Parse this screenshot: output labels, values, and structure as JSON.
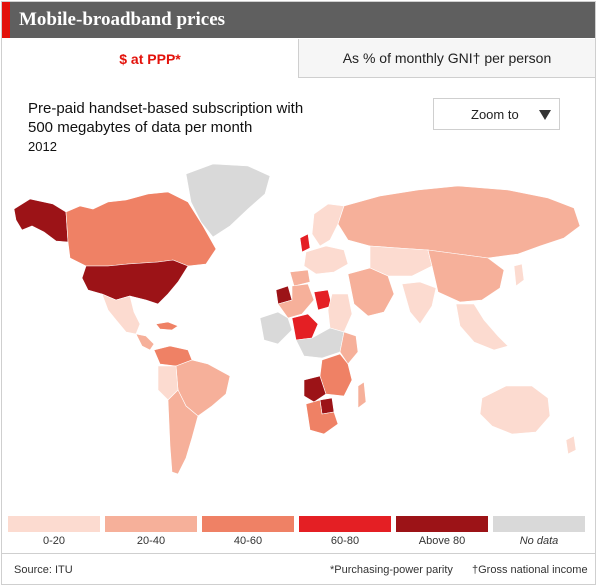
{
  "header": {
    "title": "Mobile-broadband prices"
  },
  "tabs": [
    {
      "label": "$ at PPP*",
      "active": true
    },
    {
      "label": "As % of monthly GNI† per person",
      "active": false
    }
  ],
  "map_info": {
    "subtitle_line1": "Pre-paid handset-based subscription with",
    "subtitle_line2": "500 megabytes of data per month",
    "year": "2012"
  },
  "zoom": {
    "label": "Zoom to"
  },
  "legend": [
    {
      "label": "0-20",
      "color": "#fcdbd0",
      "italic": false
    },
    {
      "label": "20-40",
      "color": "#f6b09a",
      "italic": false
    },
    {
      "label": "40-60",
      "color": "#ef8165",
      "italic": false
    },
    {
      "label": "60-80",
      "color": "#e41f24",
      "italic": false
    },
    {
      "label": "Above 80",
      "color": "#9c1317",
      "italic": false
    },
    {
      "label": "No data",
      "color": "#d9d9d9",
      "italic": true
    }
  ],
  "colors": {
    "band_0_20": "#fcdbd0",
    "band_20_40": "#f6b09a",
    "band_40_60": "#ef8165",
    "band_60_80": "#e41f24",
    "band_above_80": "#9c1317",
    "no_data": "#d9d9d9",
    "brand_red": "#e3120b"
  },
  "footer": {
    "source": "Source: ITU",
    "note_ppp": "*Purchasing-power parity",
    "note_gni": "†Gross national income"
  }
}
